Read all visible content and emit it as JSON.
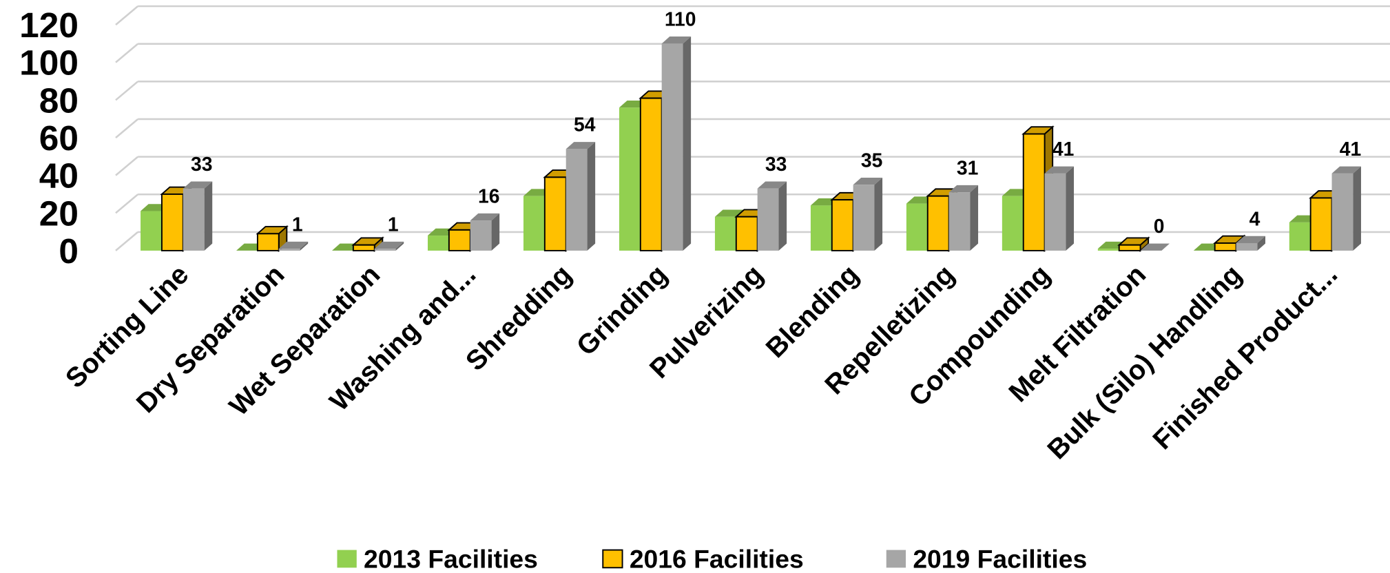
{
  "chart_data": {
    "type": "bar3d",
    "categories": [
      "Sorting Line",
      "Dry Separation",
      "Wet Separation",
      "Washing and...",
      "Shredding",
      "Grinding",
      "Pulverizing",
      "Blending",
      "Repelletizing",
      "Compounding",
      "Melt Filtration",
      "Bulk (Silo) Handling",
      "Finished Product..."
    ],
    "series": [
      {
        "name": "2013 Facilities",
        "color": "#92d050",
        "values": [
          21,
          0,
          0,
          8,
          29,
          76,
          18,
          24,
          25,
          29,
          1,
          0,
          15
        ]
      },
      {
        "name": "2016 Facilities",
        "color": "#ffc000",
        "values": [
          30,
          9,
          3,
          11,
          39,
          81,
          18,
          27,
          29,
          62,
          3,
          4,
          28
        ]
      },
      {
        "name": "2019 Facilities",
        "color": "#a6a6a6",
        "values": [
          33,
          1,
          1,
          16,
          54,
          110,
          33,
          35,
          31,
          41,
          0,
          4,
          41
        ]
      }
    ],
    "ylim": [
      0,
      120
    ],
    "yticks": [
      0,
      20,
      40,
      60,
      80,
      100,
      120
    ],
    "grid": true,
    "legend": "bottom"
  }
}
